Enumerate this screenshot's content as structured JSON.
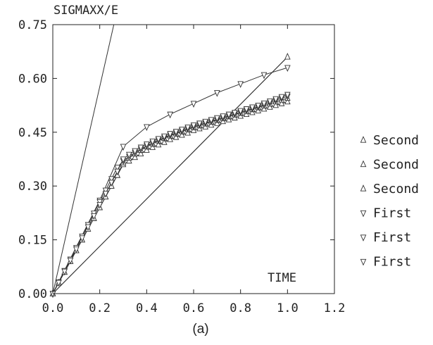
{
  "chart_data": {
    "type": "line",
    "ylabel": "SIGMAXX/E",
    "xlabel": "TIME",
    "caption": "(a)",
    "xlim": [
      0.0,
      1.2
    ],
    "ylim": [
      0.0,
      0.75
    ],
    "xticks": [
      "0.0",
      "0.2",
      "0.4",
      "0.6",
      "0.8",
      "1.0",
      "1.2"
    ],
    "yticks": [
      "0.00",
      "0.15",
      "0.30",
      "0.45",
      "0.60",
      "0.75"
    ],
    "grid": false,
    "legend_position": "right",
    "reference_lines": [
      {
        "x": [
          0.0,
          0.26
        ],
        "y": [
          0.0,
          0.75
        ]
      },
      {
        "x": [
          0.0,
          1.0
        ],
        "y": [
          0.0,
          0.66
        ]
      }
    ],
    "series": [
      {
        "name": "Second",
        "marker": "triangle-up",
        "x": [
          0.0,
          1.0
        ],
        "y": [
          0.0,
          0.66
        ]
      },
      {
        "name": "Second",
        "marker": "triangle-up",
        "x": [
          0.0,
          0.025,
          0.05,
          0.075,
          0.1,
          0.125,
          0.15,
          0.175,
          0.2,
          0.225,
          0.25,
          0.275,
          0.3,
          0.325,
          0.35,
          0.375,
          0.4,
          0.425,
          0.45,
          0.475,
          0.5,
          0.525,
          0.55,
          0.575,
          0.6,
          0.625,
          0.65,
          0.675,
          0.7,
          0.725,
          0.75,
          0.775,
          0.8,
          0.825,
          0.85,
          0.875,
          0.9,
          0.925,
          0.95,
          0.975,
          1.0
        ],
        "y": [
          0.0,
          0.03,
          0.06,
          0.09,
          0.12,
          0.15,
          0.18,
          0.21,
          0.24,
          0.27,
          0.3,
          0.33,
          0.36,
          0.37,
          0.38,
          0.39,
          0.4,
          0.408,
          0.415,
          0.422,
          0.43,
          0.436,
          0.442,
          0.448,
          0.455,
          0.46,
          0.465,
          0.47,
          0.475,
          0.48,
          0.485,
          0.49,
          0.495,
          0.5,
          0.505,
          0.51,
          0.515,
          0.52,
          0.525,
          0.53,
          0.535
        ]
      },
      {
        "name": "Second",
        "marker": "triangle-up",
        "x": [
          0.0,
          0.025,
          0.05,
          0.075,
          0.1,
          0.125,
          0.15,
          0.175,
          0.2,
          0.225,
          0.25,
          0.275,
          0.3,
          0.325,
          0.35,
          0.375,
          0.4,
          0.425,
          0.45,
          0.475,
          0.5,
          0.525,
          0.55,
          0.575,
          0.6,
          0.625,
          0.65,
          0.675,
          0.7,
          0.725,
          0.75,
          0.775,
          0.8,
          0.825,
          0.85,
          0.875,
          0.9,
          0.925,
          0.95,
          0.975,
          1.0
        ],
        "y": [
          0.0,
          0.03,
          0.06,
          0.09,
          0.12,
          0.15,
          0.18,
          0.21,
          0.24,
          0.27,
          0.3,
          0.33,
          0.365,
          0.378,
          0.39,
          0.4,
          0.41,
          0.418,
          0.426,
          0.433,
          0.44,
          0.446,
          0.452,
          0.458,
          0.464,
          0.469,
          0.474,
          0.479,
          0.484,
          0.489,
          0.494,
          0.499,
          0.504,
          0.509,
          0.514,
          0.519,
          0.524,
          0.529,
          0.535,
          0.54,
          0.545
        ]
      },
      {
        "name": "First",
        "marker": "triangle-down",
        "x": [
          0.0,
          0.2,
          0.3,
          0.4,
          0.5,
          0.6,
          0.7,
          0.8,
          0.9,
          1.0
        ],
        "y": [
          0.0,
          0.26,
          0.41,
          0.465,
          0.5,
          0.53,
          0.56,
          0.585,
          0.61,
          0.63
        ]
      },
      {
        "name": "First",
        "marker": "triangle-down",
        "x": [
          0.0,
          0.025,
          0.05,
          0.075,
          0.1,
          0.125,
          0.15,
          0.175,
          0.2,
          0.225,
          0.25,
          0.275,
          0.3,
          0.325,
          0.35,
          0.375,
          0.4,
          0.425,
          0.45,
          0.475,
          0.5,
          0.525,
          0.55,
          0.575,
          0.6,
          0.625,
          0.65,
          0.675,
          0.7,
          0.725,
          0.75,
          0.775,
          0.8,
          0.825,
          0.85,
          0.875,
          0.9,
          0.925,
          0.95,
          0.975,
          1.0
        ],
        "y": [
          0.0,
          0.032,
          0.064,
          0.096,
          0.128,
          0.16,
          0.192,
          0.224,
          0.256,
          0.288,
          0.32,
          0.352,
          0.37,
          0.382,
          0.393,
          0.403,
          0.412,
          0.42,
          0.428,
          0.435,
          0.442,
          0.448,
          0.454,
          0.46,
          0.466,
          0.471,
          0.476,
          0.481,
          0.486,
          0.491,
          0.496,
          0.501,
          0.506,
          0.511,
          0.516,
          0.521,
          0.527,
          0.533,
          0.539,
          0.545,
          0.55
        ]
      },
      {
        "name": "First",
        "marker": "triangle-down",
        "x": [
          0.0,
          0.025,
          0.05,
          0.075,
          0.1,
          0.125,
          0.15,
          0.175,
          0.2,
          0.225,
          0.25,
          0.275,
          0.3,
          0.325,
          0.35,
          0.375,
          0.4,
          0.425,
          0.45,
          0.475,
          0.5,
          0.525,
          0.55,
          0.575,
          0.6,
          0.625,
          0.65,
          0.675,
          0.7,
          0.725,
          0.75,
          0.775,
          0.8,
          0.825,
          0.85,
          0.875,
          0.9,
          0.925,
          0.95,
          0.975,
          1.0
        ],
        "y": [
          0.0,
          0.031,
          0.062,
          0.093,
          0.124,
          0.155,
          0.186,
          0.217,
          0.248,
          0.279,
          0.31,
          0.341,
          0.375,
          0.388,
          0.398,
          0.408,
          0.417,
          0.425,
          0.432,
          0.439,
          0.446,
          0.452,
          0.458,
          0.464,
          0.47,
          0.475,
          0.48,
          0.485,
          0.49,
          0.495,
          0.5,
          0.505,
          0.51,
          0.515,
          0.52,
          0.525,
          0.531,
          0.537,
          0.543,
          0.549,
          0.555
        ]
      }
    ]
  }
}
